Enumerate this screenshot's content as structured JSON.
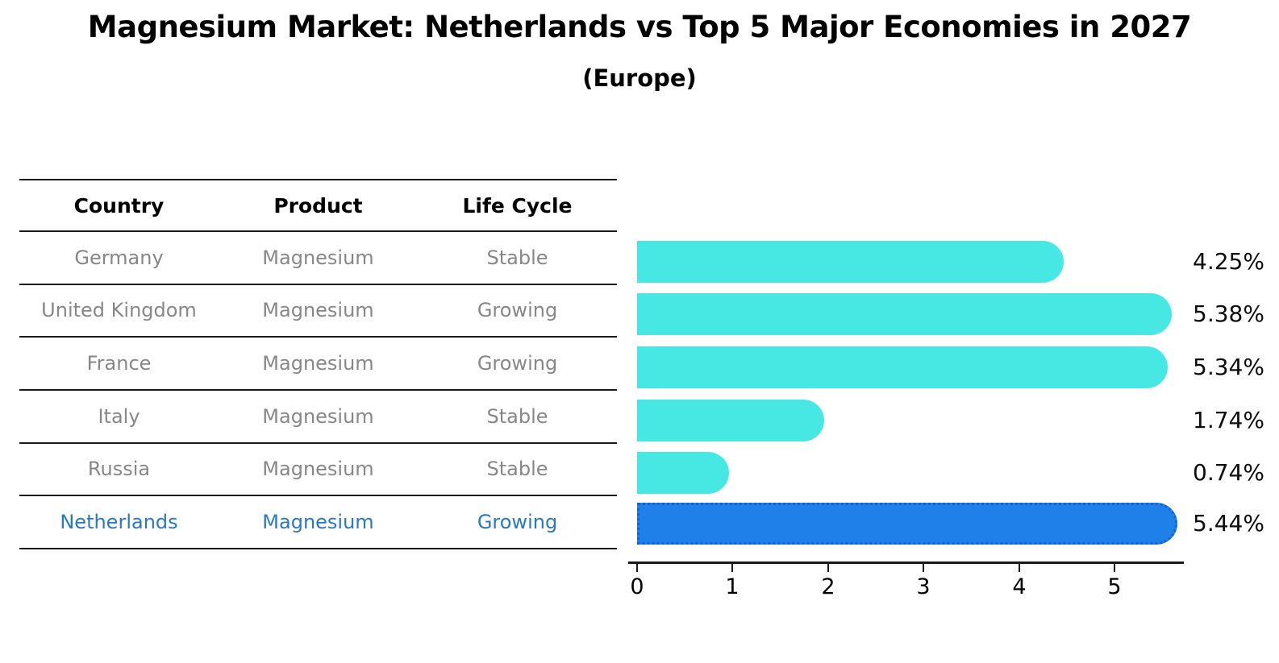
{
  "title": "Magnesium Market: Netherlands vs Top 5 Major Economies in 2027",
  "subtitle": "(Europe)",
  "table": {
    "headers": [
      "Country",
      "Product",
      "Life Cycle"
    ],
    "rows": [
      {
        "country": "Germany",
        "product": "Magnesium",
        "life_cycle": "Stable"
      },
      {
        "country": "United Kingdom",
        "product": "Magnesium",
        "life_cycle": "Growing"
      },
      {
        "country": "France",
        "product": "Magnesium",
        "life_cycle": "Growing"
      },
      {
        "country": "Italy",
        "product": "Magnesium",
        "life_cycle": "Stable"
      },
      {
        "country": "Russia",
        "product": "Magnesium",
        "life_cycle": "Stable"
      },
      {
        "country": "Netherlands",
        "product": "Magnesium",
        "life_cycle": "Growing"
      }
    ],
    "highlight_row_index": 5
  },
  "chart_data": {
    "type": "bar",
    "orientation": "horizontal",
    "categories": [
      "Germany",
      "United Kingdom",
      "France",
      "Italy",
      "Russia",
      "Netherlands"
    ],
    "values": [
      4.25,
      5.38,
      5.34,
      1.74,
      0.74,
      5.44
    ],
    "value_labels": [
      "4.25%",
      "5.38%",
      "5.34%",
      "1.74%",
      "0.74%",
      "5.44%"
    ],
    "x_ticks": [
      "0",
      "1",
      "2",
      "3",
      "4",
      "5"
    ],
    "xlim": [
      0,
      5.7
    ],
    "grid": false,
    "legend": false,
    "highlight_index": 5,
    "title": "Magnesium Market: Netherlands vs Top 5 Major Economies in 2027",
    "subtitle": "(Europe)",
    "xlabel": "",
    "ylabel": ""
  },
  "colors": {
    "bar_color": "#47E8E3",
    "highlight_bar_color": "#1E80E8",
    "highlight_border_color": "#1263CC",
    "highlight_text_color": "#2878C8",
    "muted_text": "#878787",
    "text": "#000000"
  }
}
